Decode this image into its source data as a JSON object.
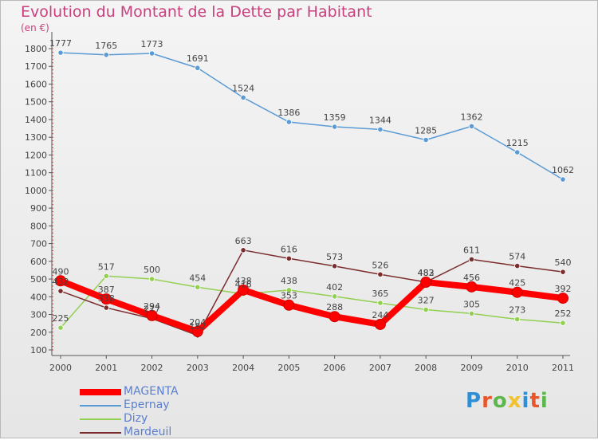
{
  "title": "Evolution du Montant de la Dette par Habitant",
  "unit": "(en €)",
  "brand": "Proxiti",
  "brand_colors": [
    "#2f8fd6",
    "#e8562a",
    "#5cb84a",
    "#f2c12e",
    "#2f8fd6",
    "#e8562a",
    "#5cb84a"
  ],
  "chart_data": {
    "type": "line",
    "title": "Evolution du Montant de la Dette par Habitant",
    "ylabel": "(en €)",
    "xlabel": "",
    "x": [
      "2000",
      "2001",
      "2002",
      "2003",
      "2004",
      "2005",
      "2006",
      "2007",
      "2008",
      "2009",
      "2010",
      "2011"
    ],
    "ylim": [
      100,
      1800
    ],
    "yticks": [
      100,
      200,
      300,
      400,
      500,
      600,
      700,
      800,
      900,
      1000,
      1100,
      1200,
      1300,
      1400,
      1500,
      1600,
      1700,
      1800
    ],
    "grid": false,
    "legend_position": "bottom-left",
    "series": [
      {
        "name": "MAGENTA",
        "color": "#ff0000",
        "values": [
          490,
          387,
          294,
          204,
          438,
          353,
          288,
          244,
          482,
          456,
          425,
          392
        ]
      },
      {
        "name": "Epernay",
        "color": "#5b9bd5",
        "values": [
          1777,
          1765,
          1773,
          1691,
          1524,
          1386,
          1359,
          1344,
          1285,
          1362,
          1215,
          1062
        ]
      },
      {
        "name": "Dizy",
        "color": "#92d050",
        "values": [
          225,
          517,
          500,
          454,
          416,
          438,
          402,
          365,
          327,
          305,
          273,
          252
        ]
      },
      {
        "name": "Mardeuil",
        "color": "#7b2c2c",
        "values": [
          432,
          338,
          277,
          182,
          663,
          616,
          573,
          526,
          483,
          611,
          574,
          540
        ]
      }
    ]
  }
}
